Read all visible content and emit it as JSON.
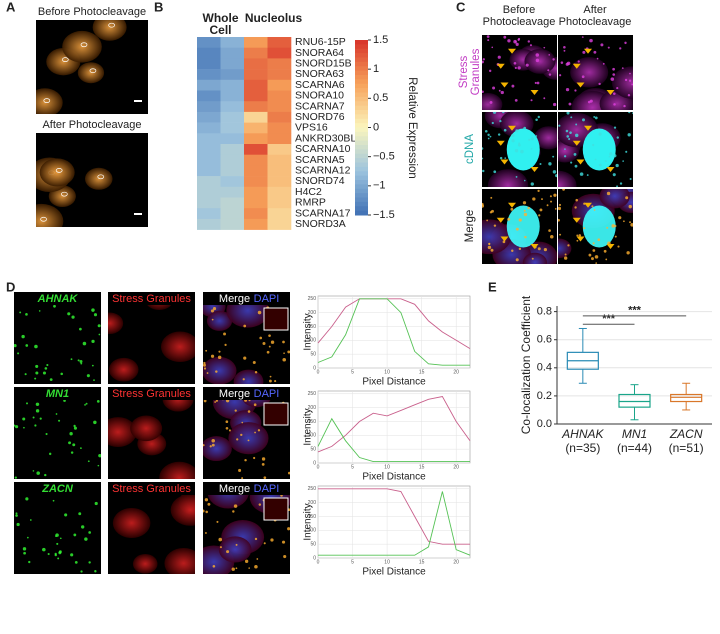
{
  "panel_labels": [
    "A",
    "B",
    "C",
    "D",
    "E"
  ],
  "panel_a": {
    "titles": [
      "Before Photocleavage",
      "After Photocleavage"
    ]
  },
  "panel_b": {
    "column_groups": [
      {
        "lines": [
          "Whole",
          "Cell"
        ]
      },
      {
        "lines": [
          "Nucleolus"
        ]
      }
    ],
    "genes": [
      "RNU6-15P",
      "SNORA64",
      "SNORD15B",
      "SNORA63",
      "SCARNA6",
      "SNORA10",
      "SCARNA7",
      "SNORD76",
      "VPS16",
      "ANKRD30BL",
      "SCARNA10",
      "SCARNA5",
      "SCARNA12",
      "SNORD74",
      "H4C2",
      "RMRP",
      "SCARNA17",
      "SNORD3A"
    ],
    "values": [
      [
        -1.2,
        -0.9,
        0.8,
        1.2
      ],
      [
        -1.3,
        -1.0,
        1.0,
        1.3
      ],
      [
        -1.3,
        -1.0,
        1.1,
        1.0
      ],
      [
        -1.2,
        -1.1,
        1.1,
        1.0
      ],
      [
        -1.0,
        -0.9,
        1.2,
        0.8
      ],
      [
        -1.2,
        -0.9,
        1.2,
        0.9
      ],
      [
        -1.1,
        -0.8,
        1.0,
        0.9
      ],
      [
        -1.0,
        -0.7,
        0.3,
        1.0
      ],
      [
        -0.9,
        -0.7,
        0.6,
        0.9
      ],
      [
        -0.8,
        -0.8,
        0.8,
        0.9
      ],
      [
        -0.8,
        -0.6,
        1.3,
        0.4
      ],
      [
        -0.8,
        -0.6,
        0.9,
        0.5
      ],
      [
        -0.8,
        -0.6,
        0.9,
        0.5
      ],
      [
        -0.6,
        -0.7,
        0.9,
        0.5
      ],
      [
        -0.6,
        -0.6,
        0.8,
        0.4
      ],
      [
        -0.6,
        -0.5,
        0.8,
        0.4
      ],
      [
        -0.7,
        -0.5,
        0.9,
        0.3
      ],
      [
        -0.6,
        -0.5,
        0.8,
        0.3
      ]
    ],
    "colorbar_label": "Relative Expression",
    "clim": [
      -1.5,
      1.5
    ],
    "cticks": [
      1.5,
      1,
      0.5,
      0,
      {
        "value": -0.5,
        "label": "−0.5"
      },
      {
        "value": -1,
        "label": "−1"
      },
      {
        "value": -1.5,
        "label": "−1.5"
      }
    ],
    "colormap": [
      "#3f70b4",
      "#9cc3de",
      "#fbf5bd",
      "#f7a25a",
      "#d7322a"
    ]
  },
  "panel_c": {
    "columns": [
      {
        "lines": [
          "Before",
          "Photocleavage"
        ]
      },
      {
        "lines": [
          "After",
          "Photocleavage"
        ]
      }
    ],
    "rows": [
      {
        "lines": [
          "Stress",
          "Granules"
        ],
        "color": "#c23cc4"
      },
      {
        "lines": [
          "cDNA"
        ],
        "color": "#21a7a7"
      },
      {
        "lines": [
          "Merge"
        ],
        "color": "#222222"
      }
    ]
  },
  "panel_d": {
    "channel_labels": [
      "Stress Granules",
      "Merge",
      "DAPI"
    ],
    "channel_colors": [
      "#ff3333",
      "#ffffff",
      "#5566ff"
    ],
    "gene_color": "#33dd33",
    "rows": [
      {
        "gene": "AHNAK",
        "x": [
          0,
          2,
          4,
          6,
          8,
          10,
          12,
          14,
          16,
          18,
          20,
          22
        ],
        "series": [
          {
            "color": "#c9608c",
            "values": [
              90,
              150,
              220,
              250,
              250,
              250,
              250,
              230,
              170,
              130,
              100,
              70
            ]
          },
          {
            "color": "#55c255",
            "values": [
              20,
              40,
              120,
              250,
              250,
              250,
              200,
              60,
              15,
              10,
              10,
              10
            ]
          }
        ]
      },
      {
        "gene": "MN1",
        "x": [
          0,
          2,
          4,
          6,
          8,
          10,
          12,
          14,
          16,
          18,
          20,
          22
        ],
        "series": [
          {
            "color": "#c9608c",
            "values": [
              40,
              60,
              100,
              150,
              180,
              170,
              190,
              210,
              230,
              240,
              150,
              80
            ]
          },
          {
            "color": "#55c255",
            "values": [
              60,
              160,
              80,
              20,
              5,
              5,
              5,
              5,
              5,
              5,
              5,
              5
            ]
          }
        ]
      },
      {
        "gene": "ZACN",
        "x": [
          0,
          2,
          4,
          6,
          8,
          10,
          12,
          14,
          16,
          18,
          20,
          22
        ],
        "series": [
          {
            "color": "#c9608c",
            "values": [
              250,
              250,
              250,
              250,
              250,
              250,
              240,
              150,
              60,
              50,
              50,
              50
            ]
          },
          {
            "color": "#55c255",
            "values": [
              10,
              10,
              10,
              10,
              10,
              10,
              10,
              10,
              40,
              240,
              30,
              10
            ]
          }
        ]
      }
    ],
    "xlabel": "Pixel Distance",
    "ylabel": "Intensity",
    "xlim": [
      0,
      22
    ],
    "ylim": [
      0,
      260
    ],
    "xticks": [
      0,
      5,
      10,
      15,
      20
    ],
    "yticks": [
      0,
      50,
      100,
      150,
      200,
      250
    ]
  },
  "panel_e": {
    "type": "box",
    "categories": [
      "AHNAK",
      "MN1",
      "ZACN"
    ],
    "n_labels": [
      "(n=35)",
      "(n=44)",
      "(n=51)"
    ],
    "colors": [
      "#2a8bb5",
      "#1aa58a",
      "#d9772a"
    ],
    "whisker_low": [
      0.29,
      0.03,
      0.1
    ],
    "q1": [
      0.39,
      0.12,
      0.16
    ],
    "median": [
      0.45,
      0.16,
      0.19
    ],
    "q3": [
      0.51,
      0.21,
      0.21
    ],
    "whisker_high": [
      0.68,
      0.28,
      0.29
    ],
    "ylabel": "Co-localization Coefficient",
    "ylim": [
      0,
      0.84
    ],
    "yticks": [
      {
        "value": 0,
        "label": "0.0"
      },
      0.2,
      0.4,
      0.6,
      0.8
    ],
    "grid": true,
    "significance": [
      {
        "from": 0,
        "to": 1,
        "y": 0.71,
        "label": "***"
      },
      {
        "from": 0,
        "to": 2,
        "y": 0.77,
        "label": "***"
      }
    ]
  }
}
